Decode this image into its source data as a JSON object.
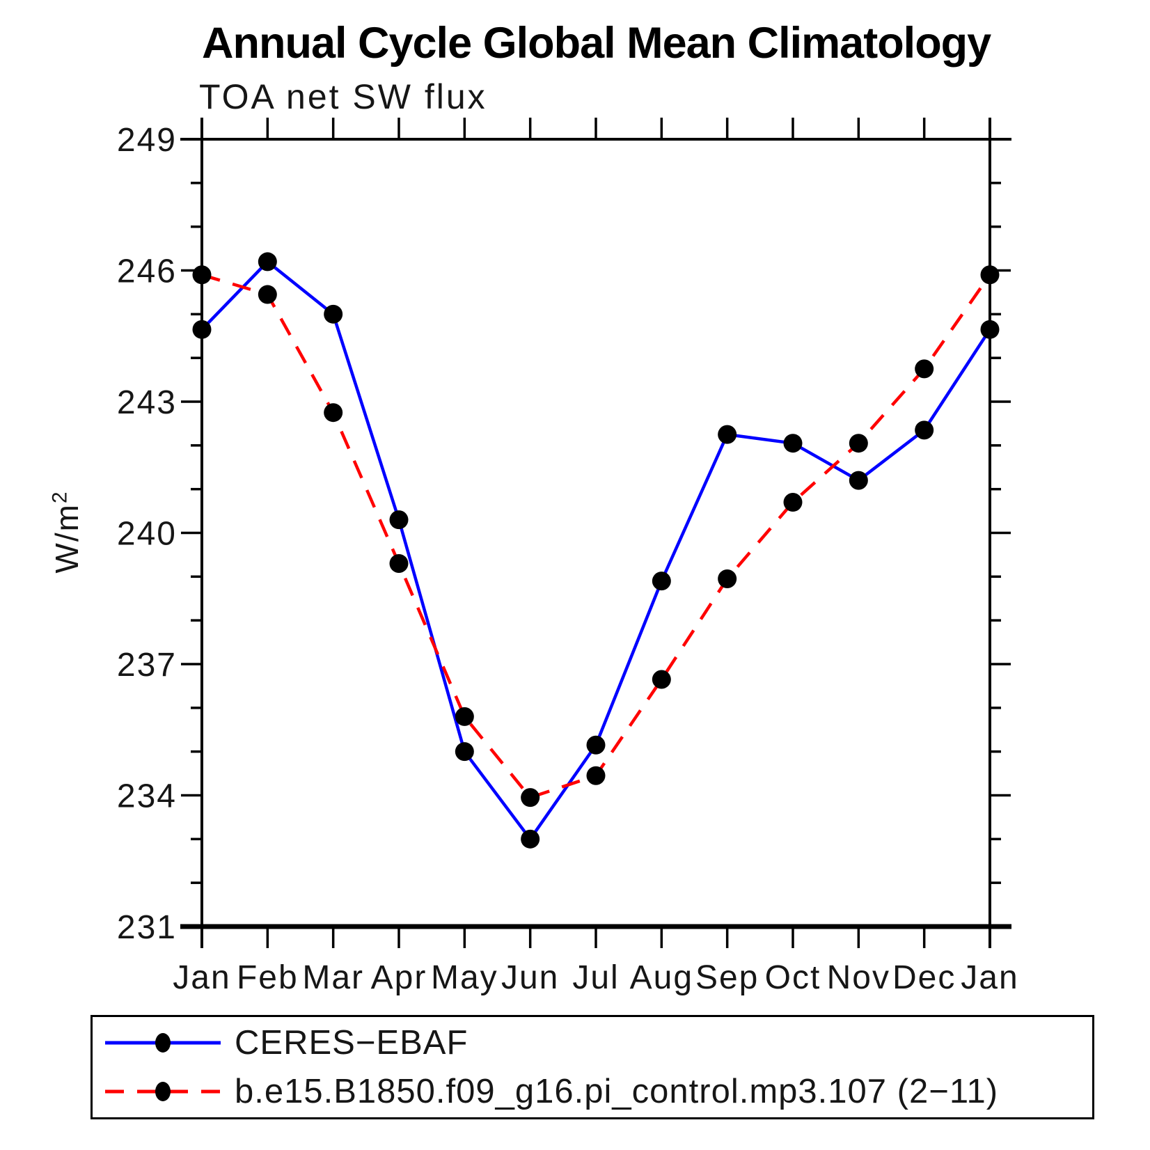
{
  "page": {
    "background": "#ffffff"
  },
  "chart": {
    "title": "Annual Cycle Global Mean Climatology",
    "subtitle": "TOA net SW flux",
    "y_axis_label_base": "W/m",
    "y_axis_label_sup": "2"
  },
  "chart_data": {
    "type": "line",
    "title": "Annual Cycle Global Mean Climatology",
    "subtitle": "TOA net SW flux",
    "ylabel": "W/m^2",
    "xlabel": "",
    "x_categories": [
      "Jan",
      "Feb",
      "Mar",
      "Apr",
      "May",
      "Jun",
      "Jul",
      "Aug",
      "Sep",
      "Oct",
      "Nov",
      "Dec",
      "Jan"
    ],
    "ylim": [
      231,
      249
    ],
    "y_major_ticks": [
      249,
      246,
      243,
      240,
      237,
      234,
      231
    ],
    "y_minor_step": 1,
    "grid": "off",
    "legend_position": "bottom-box",
    "marker": "filled-black-circle",
    "series": [
      {
        "name": "CERES−EBAF",
        "color": "#0000ff",
        "style": "solid",
        "values": [
          244.65,
          246.2,
          245.0,
          240.3,
          235.0,
          233.0,
          235.15,
          238.9,
          242.25,
          242.05,
          241.2,
          242.35,
          244.65
        ]
      },
      {
        "name": "b.e15.B1850.f09_g16.pi_control.mp3.107 (2−11)",
        "color": "#ff0000",
        "style": "dashed",
        "values": [
          245.9,
          245.45,
          242.75,
          239.3,
          235.8,
          233.95,
          234.45,
          236.65,
          238.95,
          240.7,
          242.05,
          243.75,
          245.9
        ]
      }
    ]
  }
}
